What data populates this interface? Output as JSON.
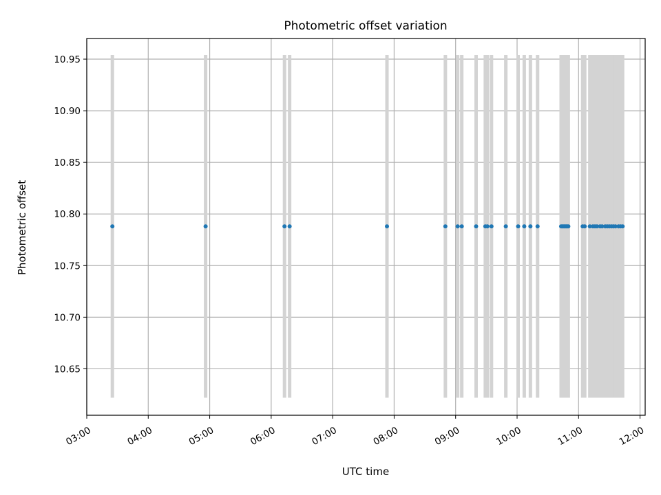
{
  "chart_data": {
    "type": "scatter",
    "title": "Photometric offset variation",
    "xlabel": "UTC time",
    "ylabel": "Photometric offset",
    "x_axis_type": "time",
    "xlim": [
      "03:00",
      "12:05"
    ],
    "ylim": [
      10.605,
      10.97
    ],
    "grid": true,
    "x_ticks": [
      "03:00",
      "04:00",
      "05:00",
      "06:00",
      "07:00",
      "08:00",
      "09:00",
      "10:00",
      "11:00",
      "12:00"
    ],
    "y_ticks": [
      "10.65",
      "10.70",
      "10.75",
      "10.80",
      "10.85",
      "10.90",
      "10.95"
    ],
    "colors": {
      "points": "#1f77b4",
      "error_bars": "#d3d3d3",
      "grid": "#b0b0b0"
    },
    "series": [
      {
        "x": [
          "03:25",
          "04:56",
          "06:13",
          "06:18",
          "07:53",
          "08:50",
          "09:02",
          "09:06",
          "09:20",
          "09:29",
          "09:31",
          "09:35",
          "09:49",
          "10:01",
          "10:07",
          "10:13",
          "10:20",
          "10:43",
          "10:44",
          "10:45",
          "10:46",
          "10:47",
          "10:48",
          "10:49",
          "10:50",
          "11:04",
          "11:06",
          "11:11",
          "11:14",
          "11:16",
          "11:18",
          "11:21",
          "11:23",
          "11:26",
          "11:28",
          "11:30",
          "11:32",
          "11:34",
          "11:36",
          "11:39",
          "11:41",
          "11:43"
        ],
        "y": [
          10.788,
          10.788,
          10.788,
          10.788,
          10.788,
          10.788,
          10.788,
          10.788,
          10.788,
          10.788,
          10.788,
          10.788,
          10.788,
          10.788,
          10.788,
          10.788,
          10.788,
          10.788,
          10.788,
          10.788,
          10.788,
          10.788,
          10.788,
          10.788,
          10.788,
          10.788,
          10.788,
          10.788,
          10.788,
          10.788,
          10.788,
          10.788,
          10.788,
          10.788,
          10.788,
          10.788,
          10.788,
          10.788,
          10.788,
          10.788,
          10.788,
          10.788
        ],
        "error_bar_range": [
          10.622,
          10.954
        ]
      }
    ]
  }
}
